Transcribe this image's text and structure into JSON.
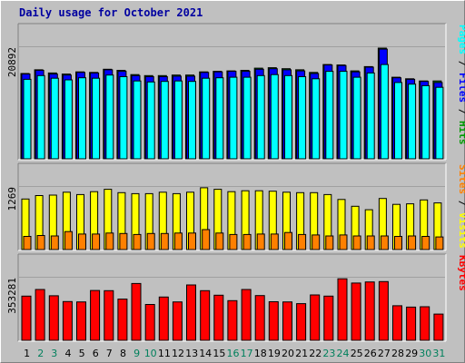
{
  "chart_data": {
    "title": "Daily usage for October 2021",
    "type": "bar",
    "categories": [
      "1",
      "2",
      "3",
      "4",
      "5",
      "6",
      "7",
      "8",
      "9",
      "10",
      "11",
      "12",
      "13",
      "14",
      "15",
      "16",
      "17",
      "18",
      "19",
      "20",
      "21",
      "22",
      "23",
      "24",
      "25",
      "26",
      "27",
      "28",
      "29",
      "30",
      "31"
    ],
    "weekend_days": [
      "2",
      "3",
      "9",
      "10",
      "16",
      "17",
      "23",
      "24",
      "30",
      "31"
    ],
    "colors": {
      "hits": "#009900",
      "files": "#0000ff",
      "pages": "#00ffff",
      "visits": "#ffff00",
      "sites": "#ff8000",
      "kbytes": "#ff0000",
      "weekday_label": "#000000",
      "weekend_label": "#00805c",
      "title": "#0000a0"
    },
    "panels": [
      {
        "name": "hits-files-pages",
        "ymax_label": "20892",
        "ylim": [
          0,
          20892
        ],
        "legend": [
          {
            "text": "Pages",
            "color": "#00ffff"
          },
          {
            "text": " / ",
            "color": "#000000"
          },
          {
            "text": "Files",
            "color": "#0000ff"
          },
          {
            "text": " / ",
            "color": "#000000"
          },
          {
            "text": "Hits",
            "color": "#009900"
          }
        ],
        "series": [
          {
            "name": "Hits",
            "color": "#009900",
            "values": [
              16100,
              16800,
              16200,
              16000,
              16400,
              16300,
              16900,
              16700,
              15900,
              15700,
              15700,
              15800,
              15800,
              16400,
              16500,
              16600,
              16700,
              17100,
              17200,
              17000,
              16800,
              16300,
              17800,
              17700,
              16600,
              17400,
              20900,
              15400,
              15100,
              14700,
              14700
            ]
          },
          {
            "name": "Files",
            "color": "#0000ff",
            "values": [
              16000,
              16700,
              16000,
              15800,
              16300,
              16200,
              16800,
              16500,
              15700,
              15500,
              15500,
              15600,
              15600,
              16300,
              16400,
              16500,
              16500,
              16900,
              17000,
              16800,
              16600,
              16100,
              17700,
              17600,
              16400,
              17300,
              20700,
              15300,
              15000,
              14600,
              14400
            ]
          },
          {
            "name": "Pages",
            "color": "#00ffff",
            "values": [
              15000,
              15700,
              15200,
              14900,
              15300,
              15200,
              15800,
              15500,
              14700,
              14500,
              14600,
              14700,
              14600,
              15200,
              15300,
              15400,
              15400,
              15700,
              15900,
              15700,
              15500,
              15100,
              16500,
              16500,
              15400,
              16200,
              17800,
              14400,
              14100,
              13800,
              13500
            ]
          }
        ]
      },
      {
        "name": "visits-sites",
        "ymax_label": "1269",
        "ylim": [
          0,
          1269
        ],
        "legend": [
          {
            "text": "Sites",
            "color": "#ff8000"
          },
          {
            "text": " / ",
            "color": "#000000"
          },
          {
            "text": "Visits",
            "color": "#ffff00"
          }
        ],
        "series": [
          {
            "name": "Visits",
            "color": "#ffff00",
            "values": [
              1040,
              1110,
              1120,
              1180,
              1130,
              1190,
              1240,
              1170,
              1150,
              1150,
              1180,
              1150,
              1180,
              1270,
              1240,
              1190,
              1210,
              1210,
              1200,
              1180,
              1170,
              1170,
              1130,
              1030,
              890,
              820,
              1050,
              930,
              940,
              1020,
              960
            ]
          },
          {
            "name": "Sites",
            "color": "#ff8000",
            "values": [
              270,
              290,
              280,
              370,
              320,
              320,
              340,
              330,
              310,
              330,
              330,
              340,
              340,
              410,
              340,
              310,
              310,
              320,
              320,
              350,
              310,
              300,
              280,
              300,
              280,
              280,
              280,
              270,
              280,
              270,
              260
            ]
          }
        ]
      },
      {
        "name": "kbytes",
        "ymax_label": "353281",
        "ylim": [
          0,
          353281
        ],
        "legend": [
          {
            "text": "KBytes",
            "color": "#ff0000"
          }
        ],
        "series": [
          {
            "name": "KBytes",
            "color": "#ff0000",
            "values": [
              253000,
              291000,
              255000,
              222000,
              220000,
              285000,
              284000,
              236000,
              325000,
              205000,
              248000,
              220000,
              317000,
              284000,
              258000,
              227000,
              291000,
              256000,
              221000,
              220000,
              210000,
              260000,
              253000,
              352000,
              328000,
              334000,
              336000,
              198000,
              190000,
              192000,
              150000
            ]
          }
        ]
      }
    ]
  }
}
